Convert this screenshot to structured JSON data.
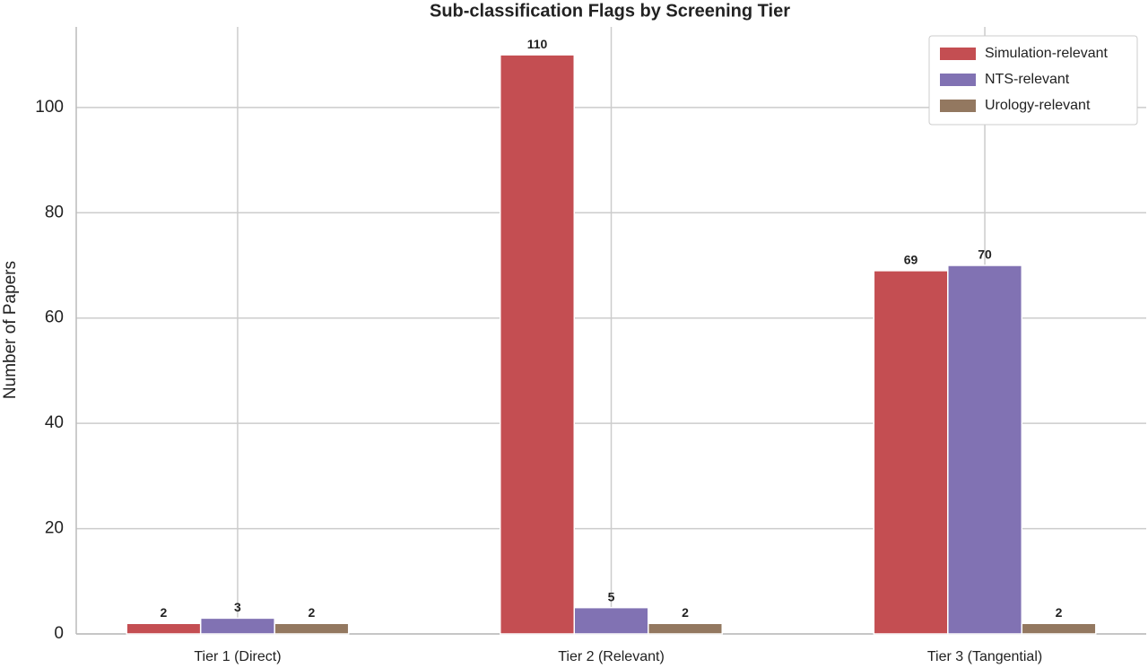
{
  "chart_data": {
    "type": "grouped_bar",
    "title": "Sub-classification Flags by Screening Tier",
    "y_label": "Number of Papers",
    "categories": [
      "Tier 1 (Direct)",
      "Tier 2 (Relevant)",
      "Tier 3 (Tangential)"
    ],
    "series": [
      {
        "name": "Simulation-relevant",
        "color": "#c44e52",
        "values": [
          2,
          110,
          69
        ]
      },
      {
        "name": "NTS-relevant",
        "color": "#8172b3",
        "values": [
          3,
          5,
          70
        ]
      },
      {
        "name": "Urology-relevant",
        "color": "#937860",
        "values": [
          2,
          2,
          2
        ]
      }
    ],
    "ylim": [
      0,
      115.3
    ],
    "yticks": [
      0,
      20,
      40,
      60,
      80,
      100
    ],
    "grid": true,
    "legend": "upper right"
  }
}
